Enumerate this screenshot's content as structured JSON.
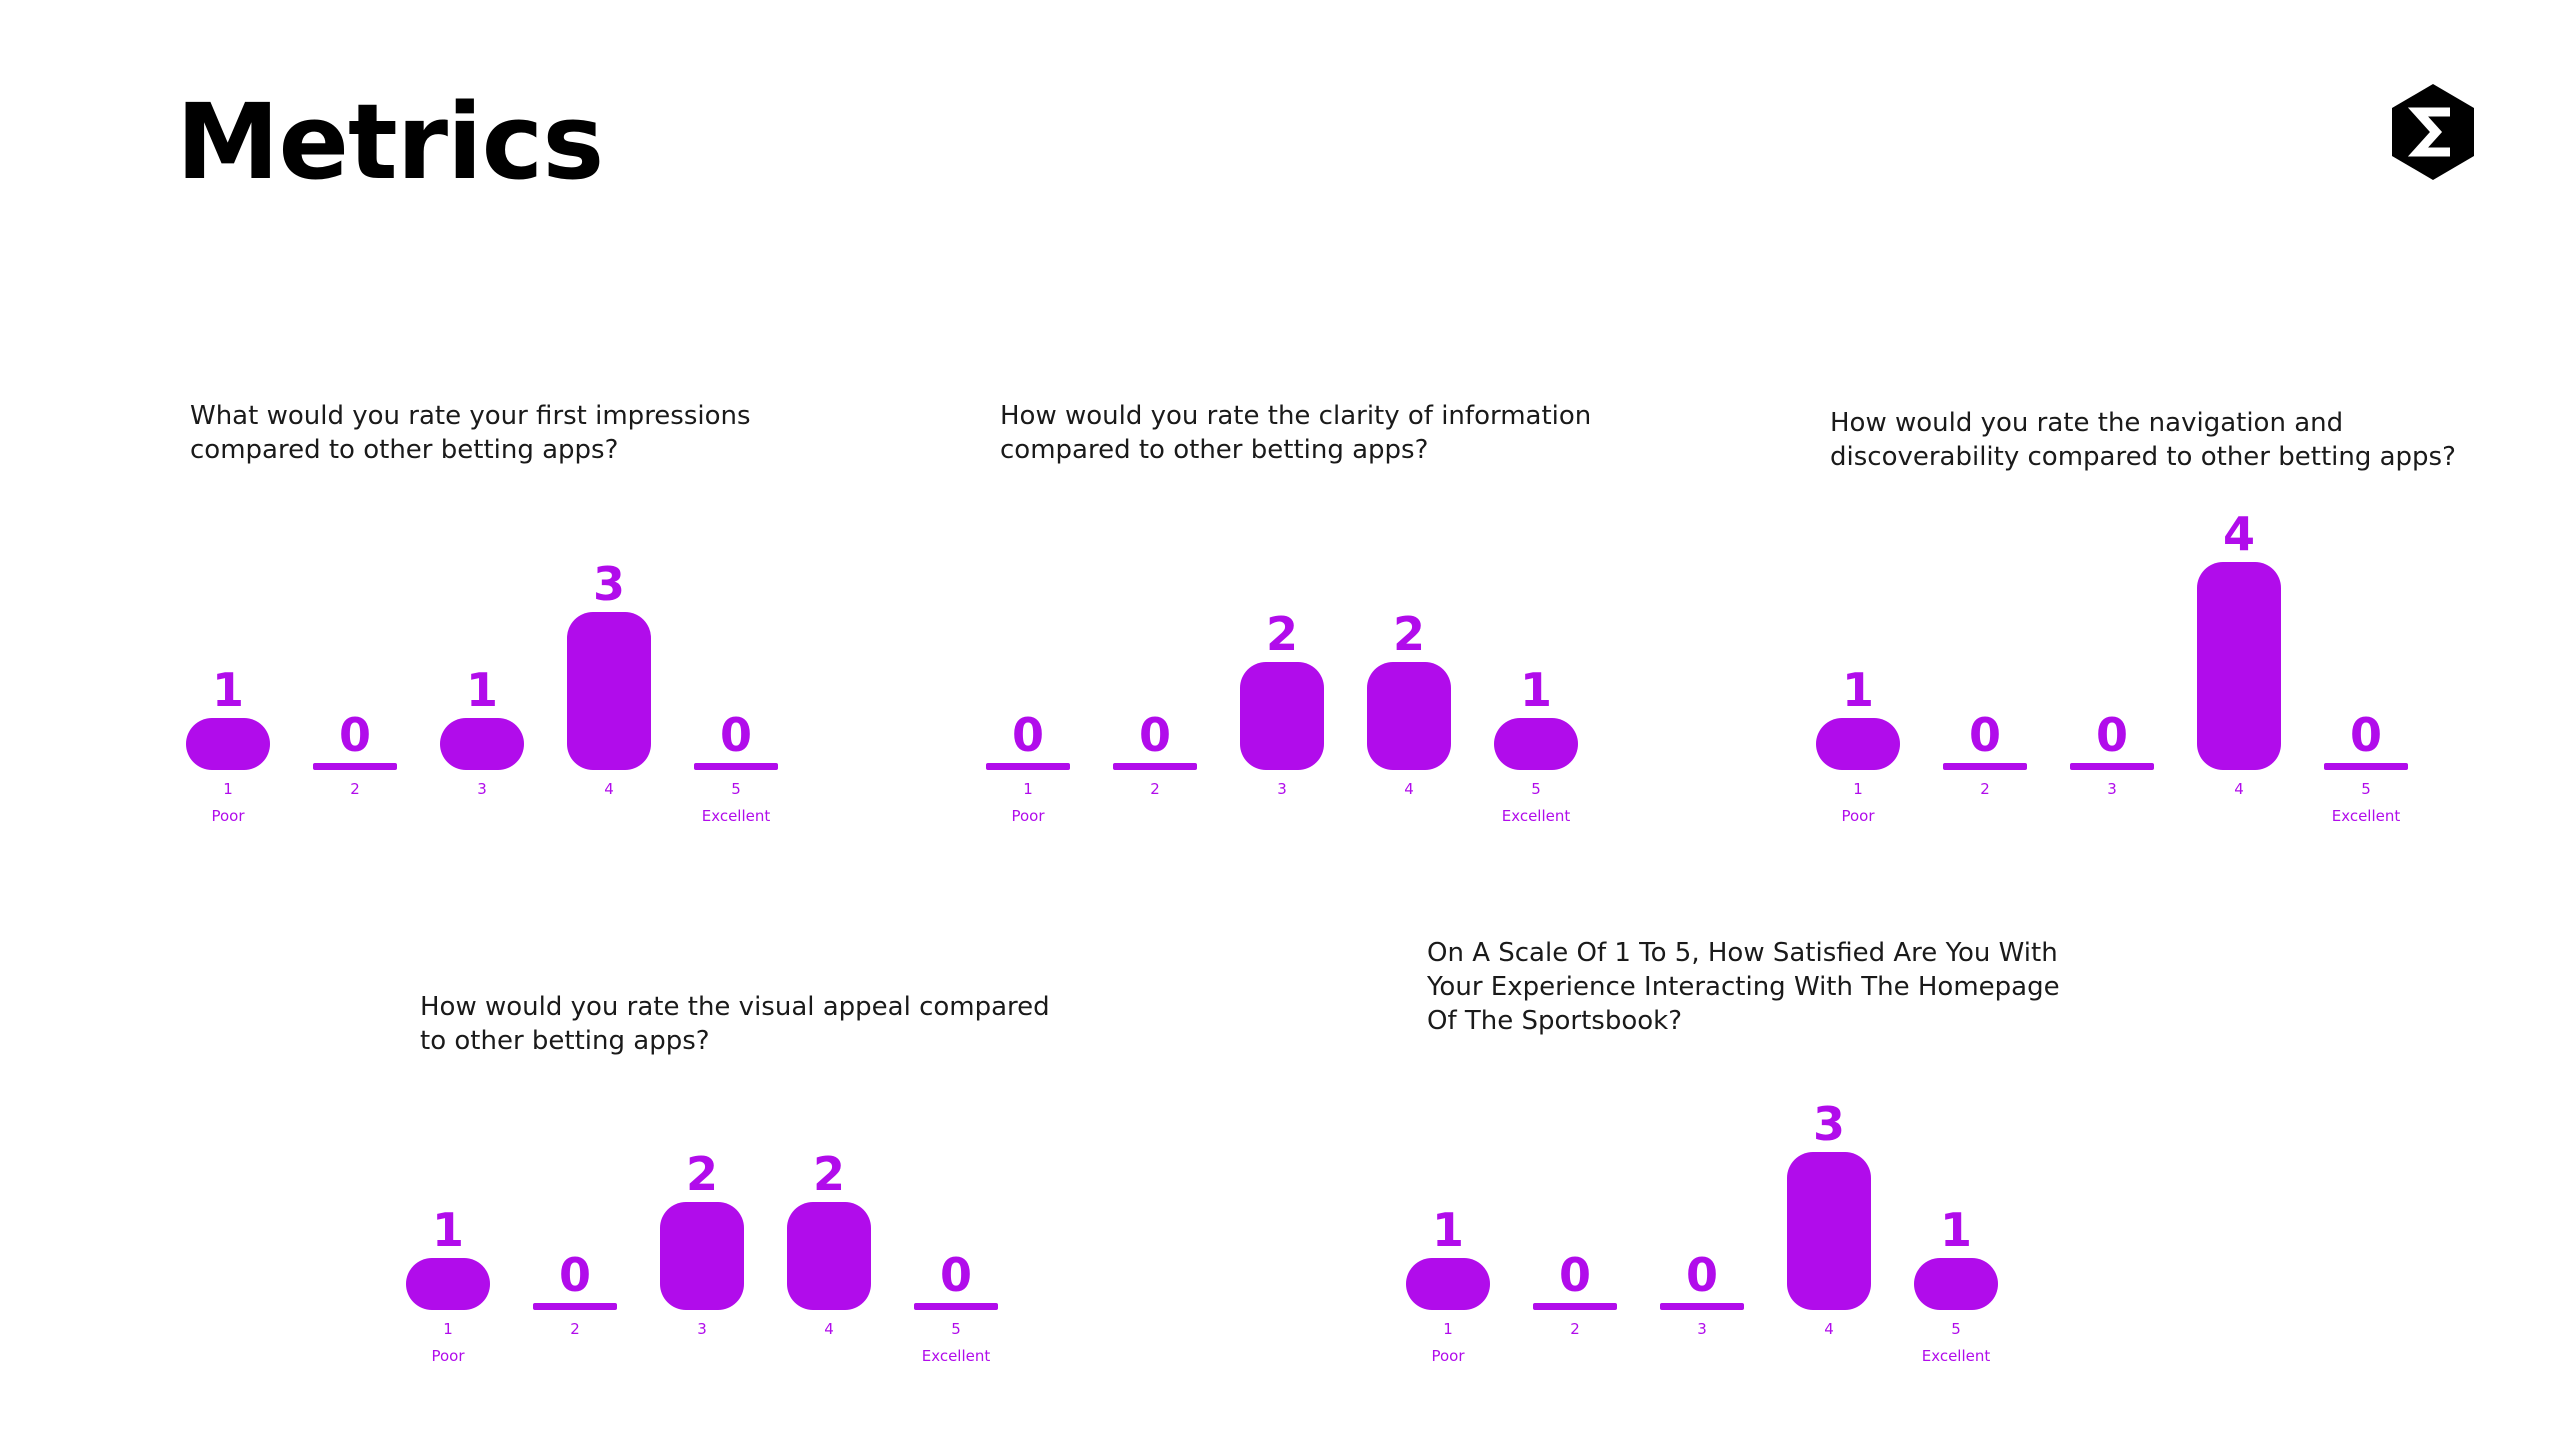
{
  "page": {
    "title": "Metrics",
    "logo_icon": "sigma-hexagon-icon",
    "accent_color": "#B10CEB"
  },
  "chart_data": [
    {
      "type": "bar",
      "title": "What would you rate your first impressions\ncompared to other betting apps?",
      "categories": [
        "1",
        "2",
        "3",
        "4",
        "5"
      ],
      "category_labels": [
        "Poor",
        "",
        "",
        "",
        "Excellent"
      ],
      "values": [
        1,
        0,
        1,
        3,
        0
      ],
      "color": "#B10CEB",
      "grid": false,
      "legend": "none"
    },
    {
      "type": "bar",
      "title": "How would you rate the clarity of information\ncompared to other betting apps?",
      "categories": [
        "1",
        "2",
        "3",
        "4",
        "5"
      ],
      "category_labels": [
        "Poor",
        "",
        "",
        "",
        "Excellent"
      ],
      "values": [
        0,
        0,
        2,
        2,
        1
      ],
      "color": "#B10CEB",
      "grid": false,
      "legend": "none"
    },
    {
      "type": "bar",
      "title": "How would you rate the navigation and\ndiscoverability compared to other betting apps?",
      "categories": [
        "1",
        "2",
        "3",
        "4",
        "5"
      ],
      "category_labels": [
        "Poor",
        "",
        "",
        "",
        "Excellent"
      ],
      "values": [
        1,
        0,
        0,
        4,
        0
      ],
      "color": "#B10CEB",
      "grid": false,
      "legend": "none"
    },
    {
      "type": "bar",
      "title": "How would you rate the visual appeal compared\nto other betting apps?",
      "categories": [
        "1",
        "2",
        "3",
        "4",
        "5"
      ],
      "category_labels": [
        "Poor",
        "",
        "",
        "",
        "Excellent"
      ],
      "values": [
        1,
        0,
        2,
        2,
        0
      ],
      "color": "#B10CEB",
      "grid": false,
      "legend": "none"
    },
    {
      "type": "bar",
      "title": "On A Scale Of 1 To 5, How Satisfied Are You With\nYour Experience Interacting With The Homepage\nOf The Sportsbook?",
      "categories": [
        "1",
        "2",
        "3",
        "4",
        "5"
      ],
      "category_labels": [
        "Poor",
        "",
        "",
        "",
        "Excellent"
      ],
      "values": [
        1,
        0,
        0,
        3,
        1
      ],
      "color": "#B10CEB",
      "grid": false,
      "legend": "none"
    }
  ]
}
